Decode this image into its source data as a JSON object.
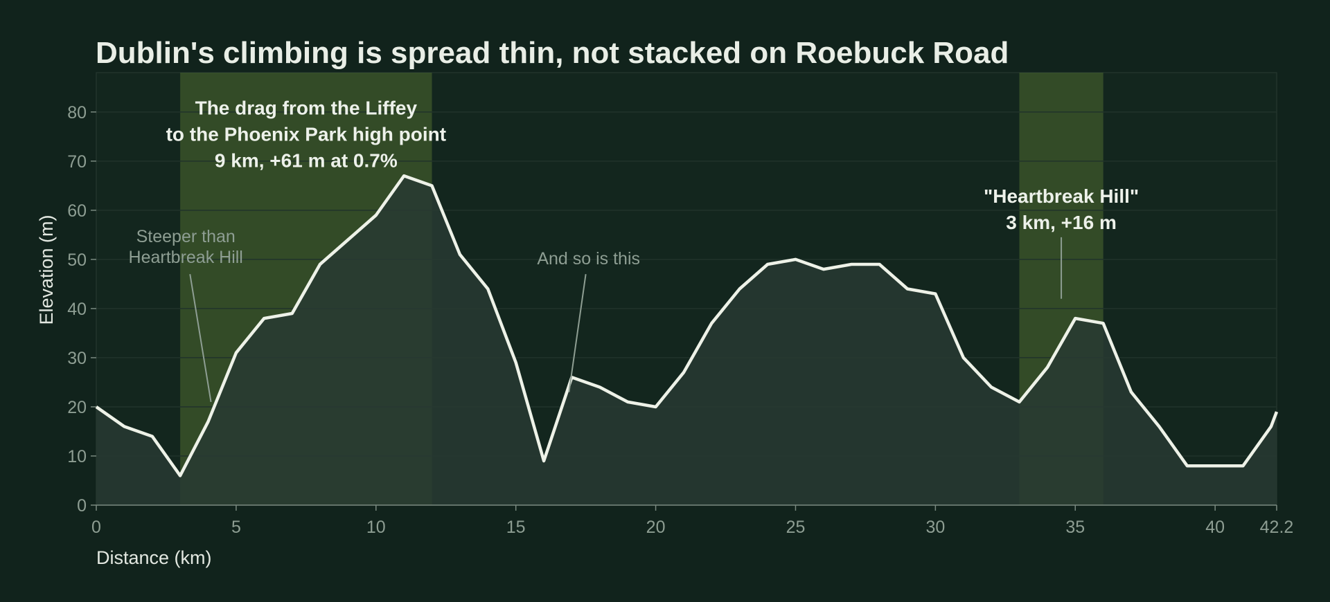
{
  "chart_data": {
    "type": "area",
    "title": "Dublin's climbing is spread thin, not stacked on Roebuck Road",
    "xlabel": "Distance (km)",
    "ylabel": "Elevation (m)",
    "xlim": [
      0,
      42.2
    ],
    "ylim": [
      0,
      88
    ],
    "x_ticks": [
      0,
      5,
      10,
      15,
      20,
      25,
      30,
      35,
      40,
      42.2
    ],
    "y_ticks": [
      0,
      10,
      20,
      30,
      40,
      50,
      60,
      70,
      80
    ],
    "grid": true,
    "colors": {
      "background": "#11231c",
      "plot_background": "#13261e",
      "line": "#eef2e8",
      "area_fill": "#283a32",
      "highlight_band": "#5a7a33",
      "grid": "#21332b",
      "tick_text": "#8e9e93"
    },
    "series": [
      {
        "x": [
          0,
          1,
          2,
          3,
          4,
          5,
          6,
          7,
          8,
          9,
          10,
          11,
          12,
          13,
          14,
          15,
          16,
          17,
          18,
          19,
          20,
          21,
          22,
          23,
          24,
          25,
          26,
          27,
          28,
          29,
          30,
          31,
          32,
          33,
          34,
          35,
          36,
          37,
          38,
          39,
          40,
          41,
          42,
          42.2
        ],
        "values": [
          20,
          16,
          14,
          6,
          17,
          31,
          38,
          39,
          49,
          54,
          59,
          67,
          65,
          51,
          44,
          29,
          9,
          26,
          24,
          21,
          20,
          27,
          37,
          44,
          49,
          50,
          48,
          49,
          49,
          44,
          43,
          30,
          24,
          21,
          28,
          38,
          37,
          23,
          16,
          8,
          8,
          8,
          16,
          19
        ]
      }
    ],
    "highlight_bands": [
      {
        "x_start": 3,
        "x_end": 12
      },
      {
        "x_start": 33,
        "x_end": 36
      }
    ],
    "annotations": [
      {
        "style": "strong",
        "lines": [
          "The drag from the Liffey",
          "to the Phoenix Park high point",
          "9 km, +61 m at 0.7%"
        ],
        "text_x": 7.5,
        "text_y": 79.5
      },
      {
        "style": "soft",
        "lines": [
          "Steeper than",
          "Heartbreak Hill"
        ],
        "text_x": 3.2,
        "text_y": 53.5,
        "leader_from": [
          3.35,
          47
        ],
        "leader_to": [
          4.1,
          21
        ]
      },
      {
        "style": "soft",
        "lines": [
          "And so is this"
        ],
        "text_x": 17.6,
        "text_y": 49,
        "leader_from": [
          17.5,
          47
        ],
        "leader_to": [
          16.9,
          23
        ]
      },
      {
        "style": "strong",
        "lines": [
          "\"Heartbreak Hill\"",
          "3 km, +16 m"
        ],
        "text_x": 34.5,
        "text_y": 61.5,
        "leader_from": [
          34.5,
          54.5
        ],
        "leader_to": [
          34.5,
          42
        ]
      }
    ]
  }
}
